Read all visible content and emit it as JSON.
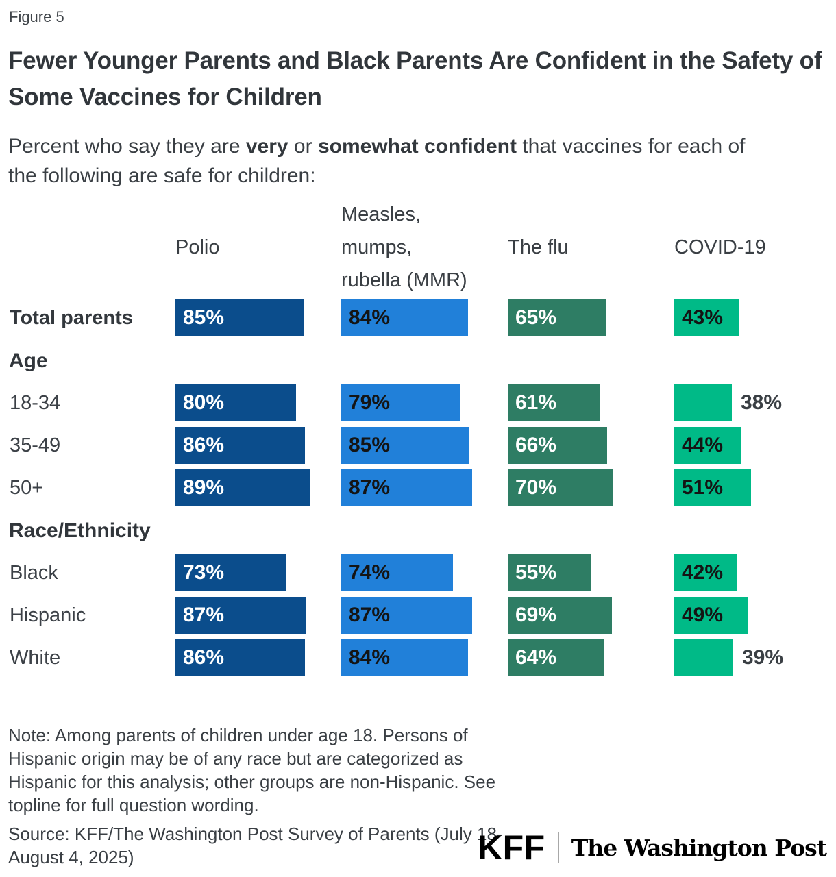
{
  "figure": {
    "label": "Figure 5",
    "title": "Fewer Younger Parents and Black Parents Are Confident in the Safety of Some Vaccines for Children",
    "subtitle": {
      "prefix": "Percent who say they are ",
      "bold1": "very",
      "mid": " or ",
      "bold2": "somewhat confident",
      "suffix_line1": " that vaccines for each of",
      "line2": "the following are safe for children:"
    }
  },
  "chart_data": {
    "type": "bar",
    "orientation": "horizontal",
    "unit": "%",
    "xlim": [
      0,
      100
    ],
    "grid": false,
    "legend": "column headers above bars",
    "title": "Fewer Younger Parents and Black Parents Are Confident in the Safety of Some Vaccines for Children",
    "columns": [
      {
        "label": "Polio",
        "label_lines": [
          "Polio"
        ],
        "color": "#0b4d8c",
        "value_label_color": "#ffffff"
      },
      {
        "label": "Measles, mumps, rubella (MMR)",
        "label_lines": [
          "Measles,",
          "mumps,",
          "rubella (MMR)"
        ],
        "color": "#2180d9",
        "value_label_color": "#141414"
      },
      {
        "label": "The flu",
        "label_lines": [
          "The flu"
        ],
        "color": "#2e7d64",
        "value_label_color": "#ffffff"
      },
      {
        "label": "COVID-19",
        "label_lines": [
          "COVID-19"
        ],
        "color": "#00ba87",
        "value_label_color": "#141414"
      }
    ],
    "rows": [
      {
        "type": "data",
        "label": "Total parents",
        "bold": true,
        "values": [
          85,
          84,
          65,
          43
        ],
        "value_label_outside": [
          false,
          false,
          false,
          false
        ]
      },
      {
        "type": "section",
        "label": "Age"
      },
      {
        "type": "data",
        "label": "18-34",
        "bold": false,
        "values": [
          80,
          79,
          61,
          38
        ],
        "value_label_outside": [
          false,
          false,
          false,
          true
        ]
      },
      {
        "type": "data",
        "label": "35-49",
        "bold": false,
        "values": [
          86,
          85,
          66,
          44
        ],
        "value_label_outside": [
          false,
          false,
          false,
          false
        ]
      },
      {
        "type": "data",
        "label": "50+",
        "bold": false,
        "values": [
          89,
          87,
          70,
          51
        ],
        "value_label_outside": [
          false,
          false,
          false,
          false
        ]
      },
      {
        "type": "section",
        "label": "Race/Ethnicity"
      },
      {
        "type": "data",
        "label": "Black",
        "bold": false,
        "values": [
          73,
          74,
          55,
          42
        ],
        "value_label_outside": [
          false,
          false,
          false,
          false
        ]
      },
      {
        "type": "data",
        "label": "Hispanic",
        "bold": false,
        "values": [
          87,
          87,
          69,
          49
        ],
        "value_label_outside": [
          false,
          false,
          false,
          false
        ]
      },
      {
        "type": "data",
        "label": "White",
        "bold": false,
        "values": [
          86,
          84,
          64,
          39
        ],
        "value_label_outside": [
          false,
          false,
          false,
          true
        ]
      }
    ]
  },
  "note": "Note: Among parents of children under age 18. Persons of Hispanic origin may be of any race but are categorized as Hispanic for this analysis; other groups are non-Hispanic. See topline for full question wording.",
  "source": "Source: KFF/The Washington Post Survey of Parents (July 18-August 4, 2025)",
  "footer": {
    "kff_logo": "KFF",
    "wapo_logo": "The Washington Post"
  }
}
